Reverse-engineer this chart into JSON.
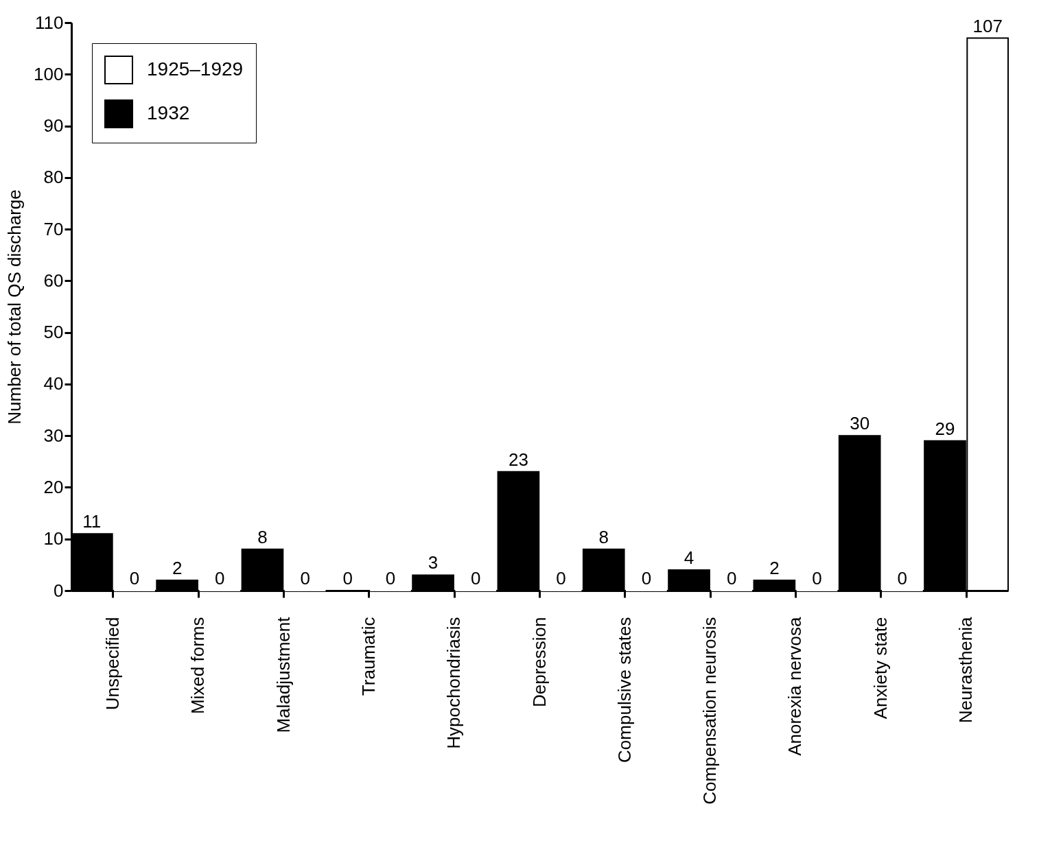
{
  "chart_data": {
    "type": "bar",
    "ylabel": "Number of total QS discharge",
    "categories": [
      "Unspecified",
      "Mixed forms",
      "Maladjustment",
      "Traumatic",
      "Hypochondriasis",
      "Depression",
      "Compulsive states",
      "Compensation neurosis",
      "Anorexia nervosa",
      "Anxiety state",
      "Neurasthenia"
    ],
    "series": [
      {
        "name": "1932",
        "color": "#000000",
        "values": [
          11,
          2,
          8,
          0,
          3,
          23,
          8,
          4,
          2,
          30,
          29
        ]
      },
      {
        "name": "1925–1929",
        "color": "#ffffff",
        "values": [
          0,
          0,
          0,
          0,
          0,
          0,
          0,
          0,
          0,
          0,
          107
        ]
      }
    ],
    "ylim": [
      0,
      110
    ],
    "yticks": [
      0,
      10,
      20,
      30,
      40,
      50,
      60,
      70,
      80,
      90,
      100,
      110
    ],
    "data_labels": true,
    "legend": "top left",
    "grid": false
  }
}
